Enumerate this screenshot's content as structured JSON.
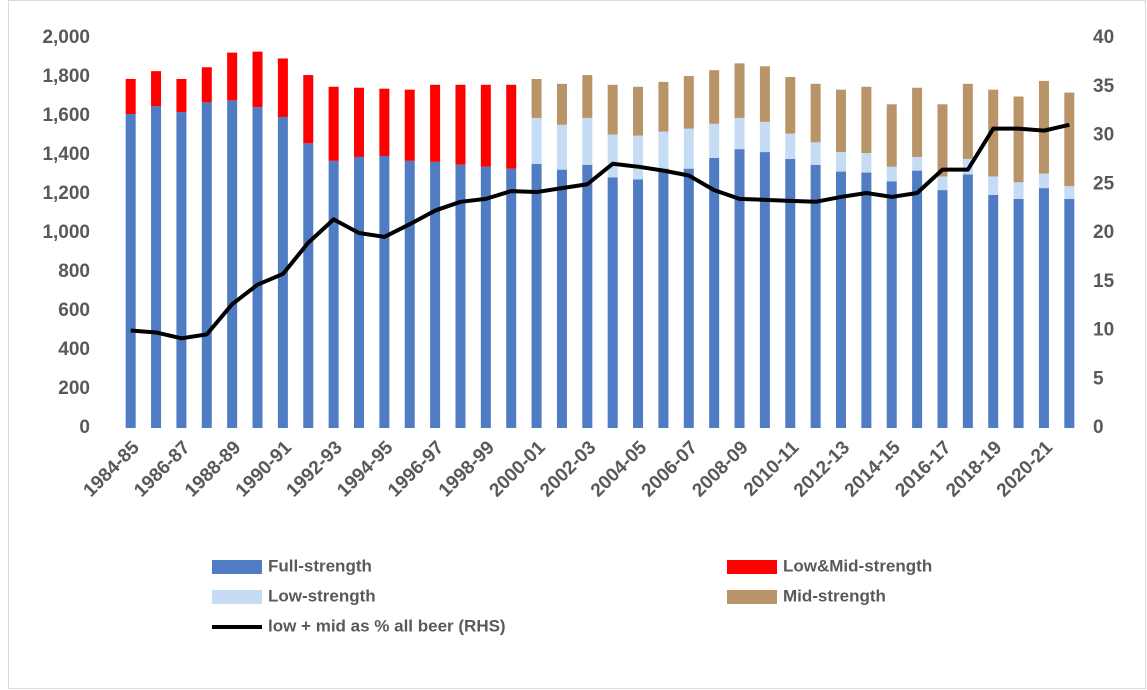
{
  "chart_data": {
    "type": "bar",
    "categories": [
      "1984-85",
      null,
      "1986-87",
      null,
      "1988-89",
      null,
      "1990-91",
      null,
      "1992-93",
      null,
      "1994-95",
      null,
      "1996-97",
      null,
      "1998-99",
      null,
      "2000-01",
      null,
      "2002-03",
      null,
      "2004-05",
      null,
      "2006-07",
      null,
      "2008-09",
      null,
      "2010-11",
      null,
      "2012-13",
      null,
      "2014-15",
      null,
      "2016-17",
      null,
      "2018-19",
      null,
      "2020-21",
      null
    ],
    "series": [
      {
        "name": "Full-strength",
        "type": "bar",
        "color": "#4f7cc2",
        "values": [
          1610,
          1650,
          1620,
          1670,
          1680,
          1645,
          1595,
          1460,
          1370,
          1390,
          1395,
          1370,
          1365,
          1350,
          1340,
          1330,
          1355,
          1325,
          1350,
          1285,
          1275,
          1330,
          1330,
          1385,
          1430,
          1415,
          1380,
          1350,
          1315,
          1310,
          1265,
          1320,
          1220,
          1300,
          1195,
          1175,
          1230,
          1175
        ]
      },
      {
        "name": "Low&Mid-strength",
        "type": "bar",
        "color": "#ff0000",
        "values": [
          180,
          180,
          170,
          180,
          245,
          285,
          300,
          350,
          380,
          355,
          345,
          365,
          395,
          410,
          420,
          430,
          null,
          null,
          null,
          null,
          null,
          null,
          null,
          null,
          null,
          null,
          null,
          null,
          null,
          null,
          null,
          null,
          null,
          null,
          null,
          null,
          null,
          null
        ]
      },
      {
        "name": "Low-strength",
        "type": "bar",
        "color": "#c6dcf5",
        "values": [
          null,
          null,
          null,
          null,
          null,
          null,
          null,
          null,
          null,
          null,
          null,
          null,
          null,
          null,
          null,
          null,
          235,
          230,
          240,
          220,
          225,
          190,
          205,
          175,
          160,
          155,
          130,
          115,
          100,
          100,
          75,
          70,
          70,
          80,
          95,
          85,
          75,
          65
        ]
      },
      {
        "name": "Mid-strength",
        "type": "bar",
        "color": "#b89468",
        "values": [
          null,
          null,
          null,
          null,
          null,
          null,
          null,
          null,
          null,
          null,
          null,
          null,
          null,
          null,
          null,
          null,
          200,
          210,
          220,
          255,
          250,
          255,
          270,
          275,
          280,
          285,
          290,
          300,
          320,
          340,
          320,
          355,
          370,
          385,
          445,
          440,
          475,
          480
        ]
      },
      {
        "name": "low + mid as % all beer (RHS)",
        "type": "line",
        "axis": "y2",
        "color": "#000000",
        "values": [
          10.0,
          9.8,
          9.2,
          9.6,
          12.7,
          14.7,
          15.8,
          19.0,
          21.4,
          20.0,
          19.6,
          20.9,
          22.3,
          23.2,
          23.5,
          24.3,
          24.2,
          24.6,
          25.0,
          27.1,
          26.8,
          26.4,
          25.9,
          24.4,
          23.5,
          23.4,
          23.3,
          23.2,
          23.7,
          24.1,
          23.7,
          24.1,
          26.5,
          26.5,
          30.7,
          30.7,
          30.5,
          31.1
        ]
      }
    ],
    "ylim": [
      0,
      2000
    ],
    "yticks": [
      0,
      200,
      400,
      600,
      800,
      {
        "value": 1000,
        "label": "1,000"
      },
      {
        "value": 1200,
        "label": "1,200"
      },
      {
        "value": 1400,
        "label": "1,400"
      },
      {
        "value": 1600,
        "label": "1,600"
      },
      {
        "value": 1800,
        "label": "1,800"
      },
      {
        "value": 2000,
        "label": "2,000"
      }
    ],
    "y2lim": [
      0,
      40
    ],
    "y2ticks": [
      0,
      5,
      10,
      15,
      20,
      25,
      30,
      35,
      40
    ],
    "stacked": true,
    "grid": false,
    "legend": "bottom"
  }
}
